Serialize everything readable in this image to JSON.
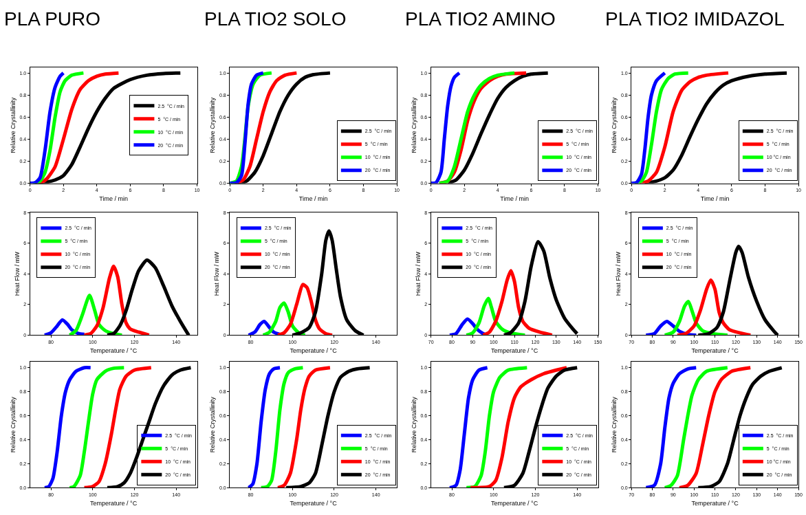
{
  "chart_data": [
    {
      "type": "line",
      "title": "PLA PURO",
      "xlabel": "Time / min",
      "ylabel": "Relative Crystallinity",
      "xlim": [
        0,
        10
      ],
      "xticks": [
        0,
        2,
        4,
        6,
        8,
        10
      ],
      "ylim": [
        0,
        1.05
      ],
      "yticks": [
        {
          "value": 0,
          "label": "0.0"
        },
        {
          "value": 0.2,
          "label": "0.2"
        },
        {
          "value": 0.4,
          "label": "0.4"
        },
        {
          "value": 0.6,
          "label": "0.6"
        },
        {
          "value": 0.8,
          "label": "0.8"
        },
        {
          "value": 1.0,
          "label": "1.0"
        }
      ],
      "legend": "right",
      "series": [
        {
          "name": "2.5  °C / min",
          "color": "#000000",
          "x": [
            0.5,
            1,
            1.5,
            2,
            2.5,
            3,
            3.5,
            4,
            4.5,
            5,
            6,
            7,
            8,
            9
          ],
          "values": [
            0,
            0.01,
            0.03,
            0.07,
            0.17,
            0.33,
            0.5,
            0.65,
            0.77,
            0.86,
            0.94,
            0.98,
            0.995,
            1.0
          ]
        },
        {
          "name": "5  °C / min",
          "color": "#ff0000",
          "x": [
            0.3,
            0.7,
            1,
            1.5,
            2,
            2.5,
            3,
            3.5,
            4,
            4.5,
            5.3
          ],
          "values": [
            0,
            0.01,
            0.04,
            0.15,
            0.4,
            0.67,
            0.85,
            0.93,
            0.97,
            0.99,
            1.0
          ]
        },
        {
          "name": "10  °C / min",
          "color": "#00ff00",
          "x": [
            0.2,
            0.6,
            0.9,
            1.2,
            1.5,
            1.8,
            2.1,
            2.5,
            3.2
          ],
          "values": [
            0,
            0.02,
            0.1,
            0.3,
            0.6,
            0.83,
            0.93,
            0.98,
            1.0
          ]
        },
        {
          "name": "20  °C / min",
          "color": "#0000ff",
          "x": [
            0,
            0.3,
            0.6,
            0.9,
            1.2,
            1.5,
            1.8,
            2.0
          ],
          "values": [
            0,
            0.005,
            0.05,
            0.3,
            0.65,
            0.87,
            0.97,
            1.0
          ]
        }
      ]
    },
    {
      "type": "line",
      "title": "PLA TIO2 SOLO",
      "xlabel": "Time / min",
      "ylabel": "Relative Crystallinity",
      "xlim": [
        0,
        10
      ],
      "xticks": [
        0,
        2,
        4,
        6,
        8,
        10
      ],
      "ylim": [
        0,
        1.05
      ],
      "yticks": [
        {
          "value": 0,
          "label": "0.0"
        },
        {
          "value": 0.2,
          "label": "0.2"
        },
        {
          "value": 0.4,
          "label": "0.4"
        },
        {
          "value": 0.6,
          "label": "0.6"
        },
        {
          "value": 0.8,
          "label": "0.8"
        },
        {
          "value": 1.0,
          "label": "1.0"
        }
      ],
      "legend": "bottom right",
      "series": [
        {
          "name": "2.5  °C / min",
          "color": "#000000",
          "x": [
            0.5,
            1,
            1.5,
            2,
            2.5,
            3,
            3.5,
            4,
            4.5,
            5,
            6
          ],
          "values": [
            0,
            0.02,
            0.1,
            0.25,
            0.45,
            0.65,
            0.8,
            0.9,
            0.96,
            0.985,
            1.0
          ]
        },
        {
          "name": "5  °C / min",
          "color": "#ff0000",
          "x": [
            0.3,
            0.8,
            1.2,
            1.6,
            2,
            2.4,
            2.8,
            3.3,
            4
          ],
          "values": [
            0,
            0.03,
            0.15,
            0.4,
            0.65,
            0.83,
            0.93,
            0.98,
            1.0
          ]
        },
        {
          "name": "10  °C / min",
          "color": "#00ff00",
          "x": [
            0,
            0.4,
            0.7,
            0.9,
            1.1,
            1.4,
            1.8,
            2.5
          ],
          "values": [
            0,
            0.02,
            0.15,
            0.4,
            0.7,
            0.9,
            0.98,
            1.0
          ]
        },
        {
          "name": "20  °C / min",
          "color": "#0000ff",
          "x": [
            0,
            0.4,
            0.7,
            0.9,
            1.1,
            1.3,
            1.6,
            2
          ],
          "values": [
            0,
            0.005,
            0.07,
            0.35,
            0.72,
            0.9,
            0.98,
            1.0
          ]
        }
      ]
    },
    {
      "type": "line",
      "title": "PLA TIO2 AMINO",
      "xlabel": "Time / min",
      "ylabel": "Relative Crystallinity",
      "xlim": [
        0,
        10
      ],
      "xticks": [
        0,
        2,
        4,
        6,
        8,
        10
      ],
      "ylim": [
        0,
        1.05
      ],
      "yticks": [
        {
          "value": 0,
          "label": "0.0"
        },
        {
          "value": 0.2,
          "label": "0.2"
        },
        {
          "value": 0.4,
          "label": "0.4"
        },
        {
          "value": 0.6,
          "label": "0.6"
        },
        {
          "value": 0.8,
          "label": "0.8"
        },
        {
          "value": 1.0,
          "label": "1.0"
        }
      ],
      "legend": "bottom right",
      "series": [
        {
          "name": "2.5  °C / min",
          "color": "#000000",
          "x": [
            1,
            1.5,
            2,
            2.5,
            3,
            3.5,
            4,
            4.5,
            5,
            5.5,
            6,
            7
          ],
          "values": [
            0,
            0.03,
            0.12,
            0.27,
            0.45,
            0.62,
            0.77,
            0.87,
            0.93,
            0.97,
            0.99,
            1.0
          ]
        },
        {
          "name": "5  °C / min",
          "color": "#ff0000",
          "x": [
            0.5,
            1,
            1.4,
            1.8,
            2.2,
            2.6,
            3,
            3.5,
            4,
            4.5,
            5.7
          ],
          "values": [
            0,
            0.02,
            0.1,
            0.3,
            0.57,
            0.75,
            0.86,
            0.93,
            0.97,
            0.99,
            1.0
          ]
        },
        {
          "name": "10  °C / min",
          "color": "#00ff00",
          "x": [
            0.5,
            1,
            1.4,
            1.8,
            2.2,
            2.6,
            3,
            3.5,
            4,
            5
          ],
          "values": [
            0,
            0.02,
            0.15,
            0.4,
            0.65,
            0.8,
            0.89,
            0.95,
            0.98,
            1.0
          ]
        },
        {
          "name": "20  °C / min",
          "color": "#0000ff",
          "x": [
            0,
            0.3,
            0.6,
            0.8,
            1,
            1.2,
            1.4,
            1.7
          ],
          "values": [
            0,
            0.005,
            0.1,
            0.4,
            0.7,
            0.88,
            0.96,
            1.0
          ]
        }
      ]
    },
    {
      "type": "line",
      "title": "PLA TIO2 IMIDAZOL",
      "xlabel": "Time / min",
      "ylabel": "Relative Crystallinity",
      "xlim": [
        0,
        10
      ],
      "xticks": [
        0,
        2,
        4,
        6,
        8,
        10
      ],
      "ylim": [
        0,
        1.05
      ],
      "yticks": [
        {
          "value": 0,
          "label": "0.0"
        },
        {
          "value": 0.2,
          "label": "0.2"
        },
        {
          "value": 0.4,
          "label": "0.4"
        },
        {
          "value": 0.6,
          "label": "0.6"
        },
        {
          "value": 0.8,
          "label": "0.8"
        },
        {
          "value": 1.0,
          "label": "1.0"
        }
      ],
      "legend": "bottom right",
      "series": [
        {
          "name": "2.5  °C / min",
          "color": "#000000",
          "x": [
            0.8,
            1.5,
            2,
            2.5,
            3,
            3.5,
            4,
            4.5,
            5,
            5.5,
            6,
            7,
            8,
            9.3
          ],
          "values": [
            0,
            0.02,
            0.05,
            0.12,
            0.25,
            0.42,
            0.58,
            0.72,
            0.82,
            0.89,
            0.93,
            0.97,
            0.99,
            1.0
          ]
        },
        {
          "name": "5  °C / min",
          "color": "#ff0000",
          "x": [
            0.5,
            1,
            1.5,
            2,
            2.5,
            3,
            3.5,
            4,
            4.5,
            5.8
          ],
          "values": [
            0,
            0.02,
            0.1,
            0.33,
            0.65,
            0.84,
            0.92,
            0.96,
            0.98,
            1.0
          ]
        },
        {
          "name": "10 °C / min",
          "color": "#00ff00",
          "x": [
            0.2,
            0.6,
            0.9,
            1.2,
            1.5,
            1.8,
            2.2,
            2.6,
            3.4
          ],
          "values": [
            0,
            0.02,
            0.1,
            0.35,
            0.65,
            0.85,
            0.95,
            0.99,
            1.0
          ]
        },
        {
          "name": "20  °C / min",
          "color": "#0000ff",
          "x": [
            0,
            0.3,
            0.6,
            0.8,
            1,
            1.2,
            1.5,
            2
          ],
          "values": [
            0,
            0.005,
            0.08,
            0.3,
            0.6,
            0.8,
            0.93,
            1.0
          ]
        }
      ]
    },
    {
      "type": "line",
      "xlabel": "Temperature / °C",
      "ylabel": "Heat Flow / mW",
      "xlim": [
        70,
        150
      ],
      "xticks": [
        80,
        100,
        120,
        140
      ],
      "ylim": [
        0,
        8
      ],
      "yticks": [
        0,
        2,
        4,
        6,
        8
      ],
      "legend": "top left",
      "series": [
        {
          "name": "2.5  °C / min",
          "color": "#0000ff",
          "x": [
            77,
            80,
            83,
            85.5,
            88,
            90,
            93,
            96
          ],
          "values": [
            0,
            0.15,
            0.6,
            1.0,
            0.7,
            0.35,
            0.12,
            0.05
          ]
        },
        {
          "name": "5  °C / min",
          "color": "#00ff00",
          "x": [
            89,
            92,
            95,
            98.5,
            101,
            103,
            106,
            110,
            114
          ],
          "values": [
            0,
            0.3,
            1.3,
            2.6,
            1.6,
            0.7,
            0.3,
            0.1,
            0
          ]
        },
        {
          "name": "10  °C / min",
          "color": "#ff0000",
          "x": [
            96,
            99,
            102,
            105,
            108,
            110,
            112,
            114,
            116,
            118,
            122,
            127
          ],
          "values": [
            0,
            0.1,
            0.6,
            1.8,
            3.7,
            4.5,
            3.8,
            2.0,
            0.8,
            0.4,
            0.2,
            0
          ]
        },
        {
          "name": "20  °C / min",
          "color": "#000000",
          "x": [
            107,
            110,
            113,
            116,
            119,
            122,
            126,
            130,
            134,
            138,
            142,
            146
          ],
          "values": [
            0,
            0.1,
            0.6,
            1.6,
            3.0,
            4.2,
            4.9,
            4.4,
            3.2,
            1.9,
            0.9,
            0
          ]
        }
      ]
    },
    {
      "type": "line",
      "xlabel": "Temperature / °C",
      "ylabel": "Heat Flow / mW",
      "xlim": [
        70,
        150
      ],
      "xticks": [
        80,
        100,
        120,
        140
      ],
      "ylim": [
        0,
        8
      ],
      "yticks": [
        0,
        2,
        4,
        6,
        8
      ],
      "legend": "top left",
      "series": [
        {
          "name": "2.5  °C / min",
          "color": "#0000ff",
          "x": [
            79,
            82,
            84.5,
            86.5,
            89,
            91,
            94
          ],
          "values": [
            0,
            0.2,
            0.7,
            0.9,
            0.5,
            0.2,
            0.05
          ]
        },
        {
          "name": "5  °C / min",
          "color": "#00ff00",
          "x": [
            86,
            89,
            92,
            94,
            96,
            98,
            100,
            103,
            106
          ],
          "values": [
            0,
            0.2,
            0.9,
            1.8,
            2.1,
            1.5,
            0.6,
            0.15,
            0
          ]
        },
        {
          "name": "10  °C / min",
          "color": "#ff0000",
          "x": [
            93,
            96,
            99,
            102,
            105,
            107,
            109,
            111,
            113,
            116,
            119
          ],
          "values": [
            0,
            0.15,
            0.7,
            2.0,
            3.3,
            3.1,
            2.2,
            1.0,
            0.4,
            0.1,
            0
          ]
        },
        {
          "name": "20  °C / min",
          "color": "#000000",
          "x": [
            100,
            104,
            108,
            111,
            114,
            116,
            117.5,
            119,
            121,
            123,
            126,
            130,
            134
          ],
          "values": [
            0,
            0.15,
            0.5,
            1.5,
            4.0,
            6.2,
            6.8,
            6.2,
            4.3,
            2.5,
            1.0,
            0.3,
            0
          ]
        }
      ]
    },
    {
      "type": "line",
      "xlabel": "Temperature / °C",
      "ylabel": "Heat Flow / mW",
      "xlim": [
        70,
        150
      ],
      "xticks": [
        70,
        80,
        90,
        100,
        110,
        120,
        130,
        140,
        150
      ],
      "ylim": [
        0,
        8
      ],
      "yticks": [
        0,
        2,
        4,
        6,
        8
      ],
      "legend": "top left",
      "series": [
        {
          "name": "2.5  °C / min",
          "color": "#0000ff",
          "x": [
            79,
            82,
            85,
            87.5,
            90,
            92,
            95,
            97
          ],
          "values": [
            0,
            0.1,
            0.7,
            1.05,
            0.75,
            0.4,
            0.1,
            0
          ]
        },
        {
          "name": "5  °C / min",
          "color": "#00ff00",
          "x": [
            87,
            90,
            93,
            95.5,
            97.5,
            99,
            101,
            104,
            108,
            115
          ],
          "values": [
            0,
            0.15,
            0.8,
            1.9,
            2.4,
            1.8,
            0.9,
            0.4,
            0.15,
            0
          ]
        },
        {
          "name": "10  °C / min",
          "color": "#ff0000",
          "x": [
            95,
            98,
            101,
            104,
            106.5,
            108.3,
            110,
            112,
            114,
            117,
            122,
            128
          ],
          "values": [
            0,
            0.2,
            0.9,
            2.2,
            3.6,
            4.2,
            3.5,
            1.8,
            0.9,
            0.45,
            0.2,
            0
          ]
        },
        {
          "name": "20  °C / min",
          "color": "#000000",
          "x": [
            105,
            108,
            112,
            115,
            118,
            121.3,
            124,
            127,
            130,
            134,
            138,
            140
          ],
          "values": [
            0,
            0.15,
            0.8,
            2.2,
            4.5,
            6.1,
            5.5,
            3.7,
            2.3,
            1.1,
            0.4,
            0.1
          ]
        }
      ]
    },
    {
      "type": "line",
      "xlabel": "Temperature / °C",
      "ylabel": "Heat Flow / mW",
      "xlim": [
        70,
        150
      ],
      "xticks": [
        70,
        80,
        90,
        100,
        110,
        120,
        130,
        140,
        150
      ],
      "ylim": [
        0,
        8
      ],
      "yticks": [
        0,
        2,
        4,
        6,
        8
      ],
      "legend": "top left",
      "series": [
        {
          "name": "2.5  °C / min",
          "color": "#0000ff",
          "x": [
            77,
            81,
            84,
            87,
            90,
            93,
            97,
            101
          ],
          "values": [
            0,
            0.1,
            0.6,
            0.9,
            0.6,
            0.25,
            0.05,
            0
          ]
        },
        {
          "name": "5  °C / min",
          "color": "#00ff00",
          "x": [
            86,
            90,
            93,
            95.5,
            97.3,
            99,
            101,
            104,
            109,
            116
          ],
          "values": [
            0,
            0.2,
            0.9,
            1.9,
            2.2,
            1.6,
            0.8,
            0.3,
            0.1,
            0
          ]
        },
        {
          "name": "10  °C / min",
          "color": "#ff0000",
          "x": [
            92,
            96,
            100,
            103,
            106,
            108,
            110,
            112,
            114,
            117,
            122,
            127
          ],
          "values": [
            0,
            0.1,
            0.6,
            1.6,
            3.0,
            3.6,
            3.0,
            1.5,
            0.8,
            0.35,
            0.15,
            0
          ]
        },
        {
          "name": "20  °C / min",
          "color": "#000000",
          "x": [
            102,
            107,
            111,
            114,
            117,
            120,
            121.3,
            123,
            126,
            130,
            134,
            138,
            140
          ],
          "values": [
            0,
            0.1,
            0.5,
            1.5,
            3.5,
            5.4,
            5.8,
            5.4,
            3.8,
            2.2,
            1.0,
            0.3,
            0
          ]
        }
      ]
    },
    {
      "type": "line",
      "xlabel": "Temperature / °C",
      "ylabel": "Relative Crystallinity",
      "xlim": [
        70,
        150
      ],
      "xticks": [
        80,
        100,
        120,
        140
      ],
      "ylim": [
        0,
        1.05
      ],
      "yticks": [
        {
          "value": 0,
          "label": "0.0"
        },
        {
          "value": 0.2,
          "label": "0.2"
        },
        {
          "value": 0.4,
          "label": "0.4"
        },
        {
          "value": 0.6,
          "label": "0.6"
        },
        {
          "value": 0.8,
          "label": "0.8"
        },
        {
          "value": 1.0,
          "label": "1.0"
        }
      ],
      "legend": "bottom right",
      "series": [
        {
          "name": "2.5  °C / min",
          "color": "#0000ff",
          "x": [
            77,
            79,
            81,
            83,
            85,
            87,
            89,
            92,
            96,
            99
          ],
          "values": [
            0,
            0.01,
            0.08,
            0.3,
            0.6,
            0.8,
            0.9,
            0.97,
            1.0,
            1.0
          ]
        },
        {
          "name": "5  °C / min",
          "color": "#00ff00",
          "x": [
            89,
            91,
            94,
            96,
            98,
            100,
            102,
            106,
            110,
            115
          ],
          "values": [
            0,
            0.01,
            0.1,
            0.3,
            0.55,
            0.78,
            0.9,
            0.97,
            0.995,
            1.0
          ]
        },
        {
          "name": "10  °C / min",
          "color": "#ff0000",
          "x": [
            96,
            100,
            103,
            106,
            109,
            111,
            113,
            116,
            120,
            128
          ],
          "values": [
            0,
            0.01,
            0.05,
            0.2,
            0.45,
            0.65,
            0.82,
            0.93,
            0.98,
            1.0
          ]
        },
        {
          "name": "20  °C / min",
          "color": "#000000",
          "x": [
            107,
            112,
            115,
            118,
            121,
            124,
            127,
            130,
            134,
            138,
            142,
            147
          ],
          "values": [
            0,
            0.01,
            0.04,
            0.12,
            0.25,
            0.4,
            0.55,
            0.7,
            0.85,
            0.94,
            0.98,
            1.0
          ]
        }
      ]
    },
    {
      "type": "line",
      "xlabel": "Temperature / °C",
      "ylabel": "Relative Crystallinity",
      "xlim": [
        70,
        150
      ],
      "xticks": [
        80,
        100,
        120,
        140
      ],
      "ylim": [
        0,
        1.05
      ],
      "yticks": [
        {
          "value": 0,
          "label": "0.0"
        },
        {
          "value": 0.2,
          "label": "0.2"
        },
        {
          "value": 0.4,
          "label": "0.4"
        },
        {
          "value": 0.6,
          "label": "0.6"
        },
        {
          "value": 0.8,
          "label": "0.8"
        },
        {
          "value": 1.0,
          "label": "1.0"
        }
      ],
      "legend": "bottom right",
      "series": [
        {
          "name": "2.5  °C / min",
          "color": "#0000ff",
          "x": [
            79,
            81,
            83,
            85,
            87,
            89,
            91,
            94
          ],
          "values": [
            0,
            0.03,
            0.2,
            0.55,
            0.82,
            0.95,
            0.99,
            1.0
          ]
        },
        {
          "name": "5  °C / min",
          "color": "#00ff00",
          "x": [
            85,
            88,
            90,
            92,
            94,
            96,
            98,
            101,
            105
          ],
          "values": [
            0,
            0.01,
            0.06,
            0.3,
            0.65,
            0.87,
            0.96,
            0.99,
            1.0
          ]
        },
        {
          "name": "10  °C / min",
          "color": "#ff0000",
          "x": [
            93,
            96,
            99,
            102,
            104,
            106,
            108,
            111,
            118
          ],
          "values": [
            0,
            0.02,
            0.12,
            0.4,
            0.65,
            0.83,
            0.93,
            0.98,
            1.0
          ]
        },
        {
          "name": "20  °C / min",
          "color": "#000000",
          "x": [
            97,
            104,
            108,
            111,
            114,
            117,
            120,
            123,
            127,
            131,
            137
          ],
          "values": [
            0,
            0.01,
            0.04,
            0.12,
            0.35,
            0.6,
            0.8,
            0.92,
            0.97,
            0.99,
            1.0
          ]
        }
      ]
    },
    {
      "type": "line",
      "xlabel": "Temperature / °C",
      "ylabel": "Relative Crystallinity",
      "xlim": [
        70,
        150
      ],
      "xticks": [
        80,
        100,
        120,
        140
      ],
      "ylim": [
        0,
        1.05
      ],
      "yticks": [
        {
          "value": 0,
          "label": "0.0"
        },
        {
          "value": 0.2,
          "label": "0.2"
        },
        {
          "value": 0.4,
          "label": "0.4"
        },
        {
          "value": 0.6,
          "label": "0.6"
        },
        {
          "value": 0.8,
          "label": "0.8"
        },
        {
          "value": 1.0,
          "label": "1.0"
        }
      ],
      "legend": "bottom right",
      "series": [
        {
          "name": "2.5  °C / min",
          "color": "#0000ff",
          "x": [
            79,
            82,
            84,
            86,
            88,
            90,
            93,
            97
          ],
          "values": [
            0,
            0.02,
            0.15,
            0.45,
            0.75,
            0.9,
            0.98,
            1.0
          ]
        },
        {
          "name": "5  °C / min",
          "color": "#00ff00",
          "x": [
            87,
            91,
            94,
            96,
            98,
            100,
            103,
            107,
            116
          ],
          "values": [
            0,
            0.01,
            0.1,
            0.3,
            0.6,
            0.8,
            0.92,
            0.98,
            1.0
          ]
        },
        {
          "name": "10  °C / min",
          "color": "#ff0000",
          "x": [
            89,
            98,
            101,
            104,
            107,
            110,
            113,
            118,
            124,
            130,
            135
          ],
          "values": [
            0,
            0.01,
            0.06,
            0.25,
            0.55,
            0.75,
            0.84,
            0.9,
            0.95,
            0.98,
            1.0
          ]
        },
        {
          "name": "20  °C / min",
          "color": "#000000",
          "x": [
            105,
            110,
            114,
            117,
            120,
            123,
            126,
            130,
            134,
            140
          ],
          "values": [
            0,
            0.02,
            0.12,
            0.3,
            0.5,
            0.68,
            0.83,
            0.93,
            0.98,
            1.0
          ]
        }
      ]
    },
    {
      "type": "line",
      "xlabel": "Temperature / °C",
      "ylabel": "Relative Crystallinity",
      "xlim": [
        70,
        150
      ],
      "xticks": [
        70,
        80,
        90,
        100,
        110,
        120,
        130,
        140,
        150
      ],
      "ylim": [
        0,
        1.05
      ],
      "yticks": [
        {
          "value": 0,
          "label": "0.0"
        },
        {
          "value": 0.2,
          "label": "0.2"
        },
        {
          "value": 0.4,
          "label": "0.4"
        },
        {
          "value": 0.6,
          "label": "0.6"
        },
        {
          "value": 0.8,
          "label": "0.8"
        },
        {
          "value": 1.0,
          "label": "1.0"
        }
      ],
      "legend": "bottom right",
      "series": [
        {
          "name": "2.5  °C / min",
          "color": "#0000ff",
          "x": [
            77,
            81,
            84,
            86,
            88,
            90,
            93,
            97,
            101
          ],
          "values": [
            0,
            0.02,
            0.2,
            0.5,
            0.75,
            0.87,
            0.95,
            0.99,
            1.0
          ]
        },
        {
          "name": "5  °C / min",
          "color": "#00ff00",
          "x": [
            86,
            89,
            92,
            95,
            97,
            99,
            102,
            106,
            116
          ],
          "values": [
            0,
            0.02,
            0.1,
            0.4,
            0.6,
            0.77,
            0.9,
            0.97,
            1.0
          ]
        },
        {
          "name": "10 °C / min",
          "color": "#ff0000",
          "x": [
            93,
            97,
            101,
            104,
            107,
            110,
            113,
            118,
            127
          ],
          "values": [
            0,
            0.02,
            0.12,
            0.35,
            0.6,
            0.8,
            0.9,
            0.97,
            1.0
          ]
        },
        {
          "name": "20  °C / min",
          "color": "#000000",
          "x": [
            102,
            108,
            112,
            116,
            119,
            122,
            125,
            128,
            132,
            136,
            142
          ],
          "values": [
            0,
            0.01,
            0.05,
            0.2,
            0.4,
            0.6,
            0.75,
            0.86,
            0.93,
            0.97,
            1.0
          ]
        }
      ]
    }
  ]
}
